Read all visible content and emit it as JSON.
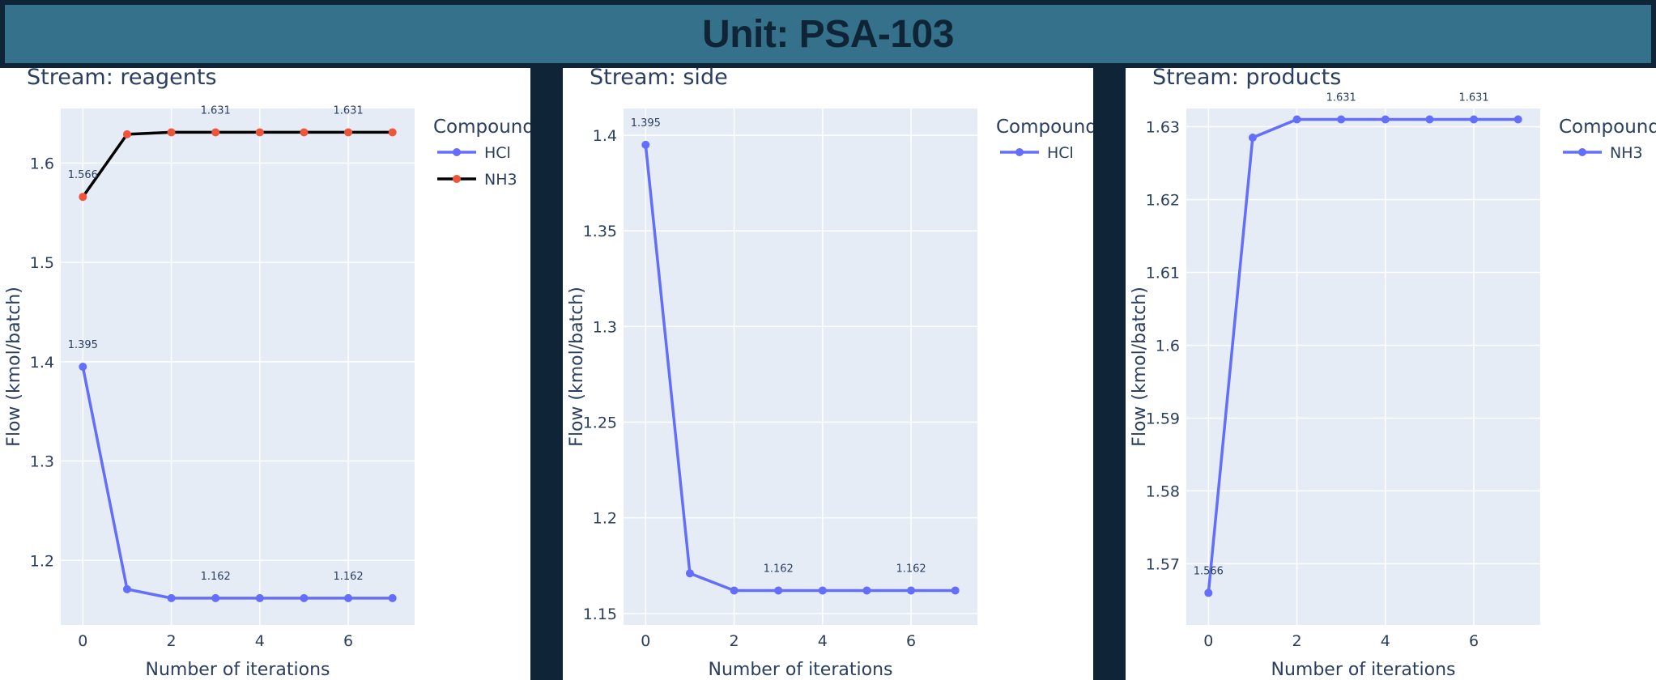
{
  "header": {
    "title": "Unit: PSA-103"
  },
  "colors": {
    "hcl": "#636efa",
    "nh3_line": "#000000",
    "nh3_marker": "#ef553b",
    "plot_bg": "#e5ecf6",
    "header_bg": "#35718a",
    "page_bg": "#0f2537"
  },
  "chart_data": [
    {
      "type": "line",
      "title": "Stream: reagents",
      "xlabel": "Number of iterations",
      "ylabel": "Flow (kmol/batch)",
      "legend_title": "Compound",
      "legend_position": "top-right",
      "grid": true,
      "xlim": [
        -0.5,
        7.5
      ],
      "ylim": [
        1.135,
        1.655
      ],
      "xticks": [
        0,
        2,
        4,
        6
      ],
      "yticks": [
        1.2,
        1.3,
        1.4,
        1.5,
        1.6
      ],
      "x": [
        0,
        1,
        2,
        3,
        4,
        5,
        6,
        7
      ],
      "series": [
        {
          "name": "HCl",
          "values": [
            1.395,
            1.171,
            1.162,
            1.162,
            1.162,
            1.162,
            1.162,
            1.162
          ],
          "labels": [
            "1.395",
            "",
            "",
            "1.162",
            "",
            "",
            "1.162",
            ""
          ],
          "line_color": "#636efa",
          "marker_color": "#636efa"
        },
        {
          "name": "NH3",
          "values": [
            1.566,
            1.629,
            1.631,
            1.631,
            1.631,
            1.631,
            1.631,
            1.631
          ],
          "labels": [
            "1.566",
            "",
            "",
            "1.631",
            "",
            "",
            "1.631",
            ""
          ],
          "line_color": "#000000",
          "marker_color": "#ef553b"
        }
      ]
    },
    {
      "type": "line",
      "title": "Stream: side",
      "xlabel": "Number of iterations",
      "ylabel": "Flow (kmol/batch)",
      "legend_title": "Compound",
      "legend_position": "top-right",
      "grid": true,
      "xlim": [
        -0.5,
        7.5
      ],
      "ylim": [
        1.144,
        1.414
      ],
      "xticks": [
        0,
        2,
        4,
        6
      ],
      "yticks": [
        1.15,
        1.2,
        1.25,
        1.3,
        1.35,
        1.4
      ],
      "x": [
        0,
        1,
        2,
        3,
        4,
        5,
        6,
        7
      ],
      "series": [
        {
          "name": "HCl",
          "values": [
            1.395,
            1.171,
            1.162,
            1.162,
            1.162,
            1.162,
            1.162,
            1.162
          ],
          "labels": [
            "1.395",
            "",
            "",
            "1.162",
            "",
            "",
            "1.162",
            ""
          ],
          "line_color": "#636efa",
          "marker_color": "#636efa"
        }
      ]
    },
    {
      "type": "line",
      "title": "Stream: products",
      "xlabel": "Number of iterations",
      "ylabel": "Flow (kmol/batch)",
      "legend_title": "Compound",
      "legend_position": "top-right",
      "grid": true,
      "xlim": [
        -0.5,
        7.5
      ],
      "ylim": [
        1.5616,
        1.6325
      ],
      "xticks": [
        0,
        2,
        4,
        6
      ],
      "yticks": [
        1.57,
        1.58,
        1.59,
        1.6,
        1.61,
        1.62,
        1.63
      ],
      "x": [
        0,
        1,
        2,
        3,
        4,
        5,
        6,
        7
      ],
      "series": [
        {
          "name": "NH3",
          "values": [
            1.566,
            1.6285,
            1.631,
            1.631,
            1.631,
            1.631,
            1.631,
            1.631
          ],
          "labels": [
            "1.566",
            "",
            "",
            "1.631",
            "",
            "",
            "1.631",
            ""
          ],
          "line_color": "#636efa",
          "marker_color": "#636efa"
        }
      ]
    }
  ]
}
